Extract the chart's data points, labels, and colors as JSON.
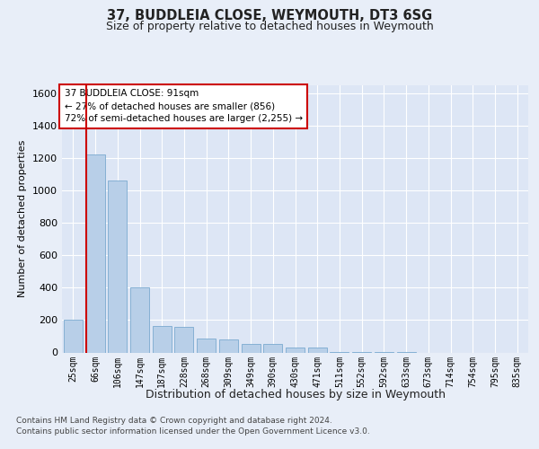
{
  "title": "37, BUDDLEIA CLOSE, WEYMOUTH, DT3 6SG",
  "subtitle": "Size of property relative to detached houses in Weymouth",
  "xlabel": "Distribution of detached houses by size in Weymouth",
  "ylabel": "Number of detached properties",
  "categories": [
    "25sqm",
    "66sqm",
    "106sqm",
    "147sqm",
    "187sqm",
    "228sqm",
    "268sqm",
    "309sqm",
    "349sqm",
    "390sqm",
    "430sqm",
    "471sqm",
    "511sqm",
    "552sqm",
    "592sqm",
    "633sqm",
    "673sqm",
    "714sqm",
    "754sqm",
    "795sqm",
    "835sqm"
  ],
  "values": [
    200,
    1225,
    1060,
    400,
    165,
    160,
    85,
    80,
    55,
    50,
    30,
    28,
    5,
    3,
    2,
    2,
    0,
    0,
    0,
    0,
    0
  ],
  "bar_color": "#b8cfe8",
  "bar_edge_color": "#7aaad0",
  "background_color": "#e8eef8",
  "plot_bg_color": "#dde6f5",
  "grid_color": "#ffffff",
  "ylim": [
    0,
    1650
  ],
  "yticks": [
    0,
    200,
    400,
    600,
    800,
    1000,
    1200,
    1400,
    1600
  ],
  "property_line_color": "#cc0000",
  "annotation_text": "37 BUDDLEIA CLOSE: 91sqm\n← 27% of detached houses are smaller (856)\n72% of semi-detached houses are larger (2,255) →",
  "annotation_box_color": "#cc0000",
  "annotation_box_fill": "#ffffff",
  "footer_line1": "Contains HM Land Registry data © Crown copyright and database right 2024.",
  "footer_line2": "Contains public sector information licensed under the Open Government Licence v3.0."
}
